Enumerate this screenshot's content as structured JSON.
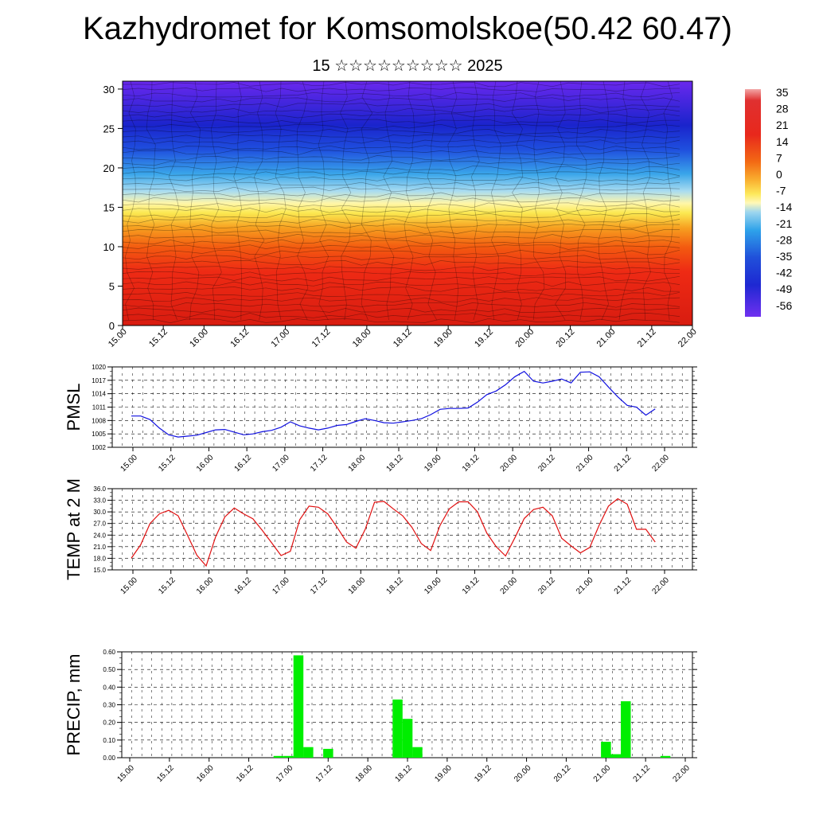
{
  "title": "Kazhydromet for Komsomolskoe(50.42 60.47)",
  "subtitle": "15 ☆☆☆☆☆☆☆☆☆ 2025",
  "time_ticks": [
    "15.00",
    "15.12",
    "16.00",
    "16.12",
    "17.00",
    "17.12",
    "18.00",
    "18.12",
    "19.00",
    "19.12",
    "20.00",
    "20.12",
    "21.00",
    "21.12",
    "22.00"
  ],
  "chart_data": [
    {
      "type": "heatmap",
      "yticks": [
        "0",
        "5",
        "10",
        "15",
        "20",
        "25",
        "30"
      ],
      "ylim": [
        0,
        31
      ],
      "colorbar": {
        "labels": [
          "35",
          "28",
          "21",
          "14",
          "7",
          "0",
          "-7",
          "-14",
          "-21",
          "-28",
          "-35",
          "-42",
          "-49",
          "-56"
        ]
      }
    },
    {
      "type": "line",
      "ylabel": "PMSL",
      "ylim": [
        1002,
        1020
      ],
      "yticks": [
        "1002",
        "1005",
        "1008",
        "1011",
        "1014",
        "1017",
        "1020"
      ],
      "color": "#1010e0",
      "x": [
        0,
        1,
        2,
        3,
        4,
        5,
        6,
        7,
        8,
        9,
        10,
        11,
        12,
        13,
        14,
        15,
        16,
        17,
        18,
        19,
        20,
        21,
        22,
        23,
        24,
        25,
        26,
        27,
        28,
        29,
        30,
        31,
        32,
        33,
        34,
        35,
        36,
        37,
        38,
        39,
        40,
        41,
        42,
        43,
        44,
        45,
        46,
        47,
        48,
        49,
        50,
        51,
        52,
        53,
        54,
        55,
        56
      ],
      "values": [
        1009.0,
        1009.0,
        1008.2,
        1006.3,
        1004.8,
        1004.3,
        1004.5,
        1004.7,
        1005.3,
        1005.9,
        1006.0,
        1005.4,
        1004.8,
        1005.0,
        1005.5,
        1005.8,
        1006.5,
        1007.7,
        1006.8,
        1006.3,
        1005.9,
        1006.3,
        1006.9,
        1007.1,
        1007.8,
        1008.4,
        1008.0,
        1007.5,
        1007.4,
        1007.7,
        1008.0,
        1008.4,
        1009.3,
        1010.5,
        1010.7,
        1010.7,
        1010.8,
        1012.1,
        1013.8,
        1014.6,
        1016.0,
        1017.8,
        1019.0,
        1016.8,
        1016.4,
        1016.8,
        1017.3,
        1016.4,
        1018.8,
        1018.9,
        1017.8,
        1015.5,
        1013.3,
        1011.4,
        1011.0,
        1009.2,
        1010.6
      ]
    },
    {
      "type": "line",
      "ylabel": "TEMP at 2 M",
      "ylim": [
        15.0,
        36.0
      ],
      "yticks": [
        "15.0",
        "18.0",
        "21.0",
        "24.0",
        "27.0",
        "30.0",
        "33.0",
        "36.0"
      ],
      "color": "#e01010",
      "x": [
        0,
        1,
        2,
        3,
        4,
        5,
        6,
        7,
        8,
        9,
        10,
        11,
        12,
        13,
        14,
        15,
        16,
        17,
        18,
        19,
        20,
        21,
        22,
        23,
        24,
        25,
        26,
        27,
        28,
        29,
        30,
        31,
        32,
        33,
        34,
        35,
        36,
        37,
        38,
        39,
        40,
        41,
        42,
        43,
        44,
        45,
        46,
        47,
        48,
        49,
        50,
        51,
        52,
        53,
        54,
        55,
        56
      ],
      "values": [
        18.0,
        21.5,
        27.0,
        29.5,
        30.4,
        29.0,
        24.0,
        18.8,
        16.0,
        23.5,
        28.7,
        31.0,
        29.5,
        28.2,
        25.2,
        22.0,
        18.7,
        19.8,
        28.0,
        31.5,
        31.2,
        29.5,
        26.0,
        22.2,
        20.6,
        25.5,
        32.5,
        32.7,
        30.8,
        29.0,
        26.0,
        21.8,
        20.0,
        26.5,
        30.8,
        32.6,
        32.6,
        30.0,
        24.5,
        21.0,
        18.6,
        23.3,
        28.3,
        30.6,
        31.2,
        29.0,
        23.2,
        21.2,
        19.4,
        20.8,
        26.5,
        31.5,
        33.4,
        32.0,
        25.5,
        25.5,
        22.2
      ]
    },
    {
      "type": "bar",
      "ylabel": "PRECIP, mm",
      "ylim": [
        0,
        0.6
      ],
      "yticks": [
        "0.00",
        "0.10",
        "0.20",
        "0.30",
        "0.40",
        "0.50",
        "0.60"
      ],
      "color": "#00ee00",
      "bars": [
        {
          "x": 15,
          "value": 0.01
        },
        {
          "x": 16,
          "value": 0.01
        },
        {
          "x": 17,
          "value": 0.58
        },
        {
          "x": 18,
          "value": 0.06
        },
        {
          "x": 20,
          "value": 0.05
        },
        {
          "x": 27,
          "value": 0.33
        },
        {
          "x": 28,
          "value": 0.22
        },
        {
          "x": 29,
          "value": 0.06
        },
        {
          "x": 48,
          "value": 0.09
        },
        {
          "x": 49,
          "value": 0.02
        },
        {
          "x": 50,
          "value": 0.32
        },
        {
          "x": 54,
          "value": 0.01
        }
      ]
    }
  ]
}
